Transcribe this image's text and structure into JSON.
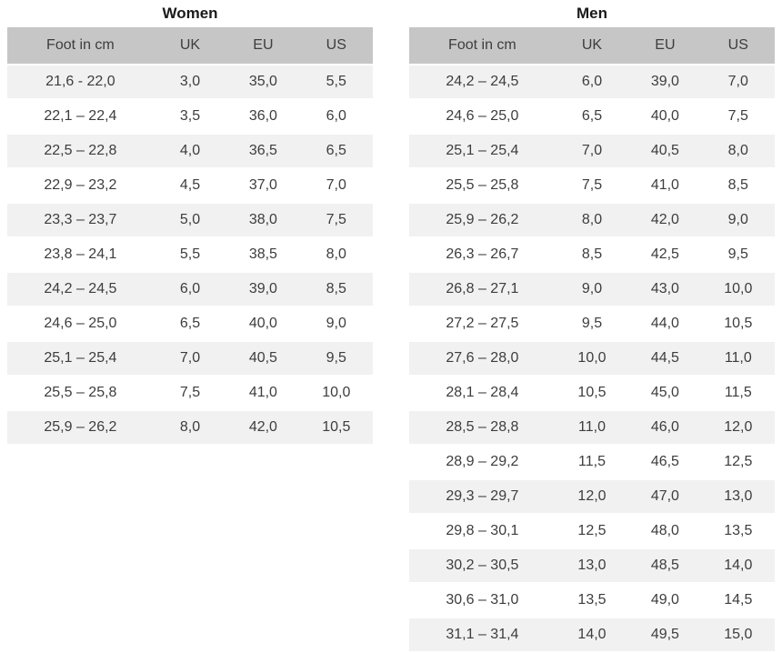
{
  "colors": {
    "header_bg": "#c5c6c5",
    "stripe_bg": "#f0f1f0",
    "text": "#3d3d3d",
    "title": "#1a1a1a",
    "page_bg": "#ffffff"
  },
  "tables": [
    {
      "id": "women",
      "title": "Women",
      "columns": [
        "Foot in cm",
        "UK",
        "EU",
        "US"
      ],
      "rows": [
        [
          "21,6 - 22,0",
          "3,0",
          "35,0",
          "5,5"
        ],
        [
          "22,1 – 22,4",
          "3,5",
          "36,0",
          "6,0"
        ],
        [
          "22,5 – 22,8",
          "4,0",
          "36,5",
          "6,5"
        ],
        [
          "22,9 – 23,2",
          "4,5",
          "37,0",
          "7,0"
        ],
        [
          "23,3 – 23,7",
          "5,0",
          "38,0",
          "7,5"
        ],
        [
          "23,8 – 24,1",
          "5,5",
          "38,5",
          "8,0"
        ],
        [
          "24,2 – 24,5",
          "6,0",
          "39,0",
          "8,5"
        ],
        [
          "24,6 – 25,0",
          "6,5",
          "40,0",
          "9,0"
        ],
        [
          "25,1 – 25,4",
          "7,0",
          "40,5",
          "9,5"
        ],
        [
          "25,5 – 25,8",
          "7,5",
          "41,0",
          "10,0"
        ],
        [
          "25,9 – 26,2",
          "8,0",
          "42,0",
          "10,5"
        ]
      ]
    },
    {
      "id": "men",
      "title": "Men",
      "columns": [
        "Foot in cm",
        "UK",
        "EU",
        "US"
      ],
      "rows": [
        [
          "24,2 – 24,5",
          "6,0",
          "39,0",
          "7,0"
        ],
        [
          "24,6 – 25,0",
          "6,5",
          "40,0",
          "7,5"
        ],
        [
          "25,1 – 25,4",
          "7,0",
          "40,5",
          "8,0"
        ],
        [
          "25,5 – 25,8",
          "7,5",
          "41,0",
          "8,5"
        ],
        [
          "25,9 – 26,2",
          "8,0",
          "42,0",
          "9,0"
        ],
        [
          "26,3 – 26,7",
          "8,5",
          "42,5",
          "9,5"
        ],
        [
          "26,8 – 27,1",
          "9,0",
          "43,0",
          "10,0"
        ],
        [
          "27,2 – 27,5",
          "9,5",
          "44,0",
          "10,5"
        ],
        [
          "27,6 – 28,0",
          "10,0",
          "44,5",
          "11,0"
        ],
        [
          "28,1 – 28,4",
          "10,5",
          "45,0",
          "11,5"
        ],
        [
          "28,5 – 28,8",
          "11,0",
          "46,0",
          "12,0"
        ],
        [
          "28,9 – 29,2",
          "11,5",
          "46,5",
          "12,5"
        ],
        [
          "29,3 – 29,7",
          "12,0",
          "47,0",
          "13,0"
        ],
        [
          "29,8 – 30,1",
          "12,5",
          "48,0",
          "13,5"
        ],
        [
          "30,2 – 30,5",
          "13,0",
          "48,5",
          "14,0"
        ],
        [
          "30,6 – 31,0",
          "13,5",
          "49,0",
          "14,5"
        ],
        [
          "31,1 – 31,4",
          "14,0",
          "49,5",
          "15,0"
        ]
      ]
    }
  ]
}
